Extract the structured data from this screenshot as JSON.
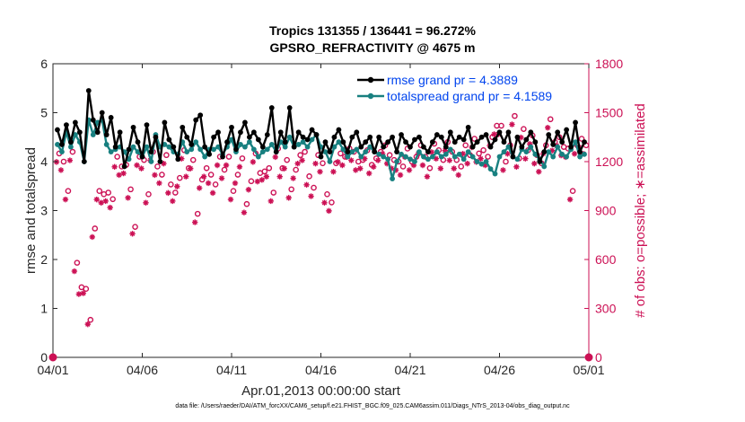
{
  "chart_data": {
    "type": "line",
    "title_line1": "Tropics 131355 / 136441 = 96.272%",
    "title_line2": "GPSRO_REFRACTIVITY @ 4675 m",
    "xlabel": "Apr.01,2013 00:00:00 start",
    "ylabel_left": "rmse and totalspread",
    "ylabel_right": "# of obs: o=possible; ∗=assimilated",
    "footer": "data file: /Users/raeder/DAI/ATM_forcXX/CAM6_setup/f.e21.FHIST_BGC.f09_025.CAM6assim.011/Diags_NTrS_2013-04/obs_diag_output.nc",
    "xlim": [
      0,
      30
    ],
    "ylim_left": [
      0,
      6
    ],
    "ylim_right": [
      0,
      1800
    ],
    "x_ticks": [
      0,
      5,
      10,
      15,
      20,
      25,
      30
    ],
    "x_tick_labels": [
      "04/01",
      "04/06",
      "04/11",
      "04/16",
      "04/21",
      "04/26",
      "05/01"
    ],
    "y_left_ticks": [
      "0",
      "1",
      "2",
      "3",
      "4",
      "5",
      "6"
    ],
    "y_right_ticks": [
      "0",
      "300",
      "600",
      "900",
      "1200",
      "1500",
      "1800"
    ],
    "legend_position": "top-right",
    "colors": {
      "rmse": "#000000",
      "spread": "#188080",
      "obs": "#cc1155",
      "legend_text": "#0044ee"
    },
    "series": [
      {
        "name": "rmse grand pr = 4.3889",
        "role": "rmse",
        "x": [
          0.25,
          0.5,
          0.75,
          1,
          1.25,
          1.5,
          1.75,
          2,
          2.25,
          2.5,
          2.75,
          3,
          3.25,
          3.5,
          3.75,
          4,
          4.25,
          4.5,
          4.75,
          5,
          5.25,
          5.5,
          5.75,
          6,
          6.25,
          6.5,
          6.75,
          7,
          7.25,
          7.5,
          7.75,
          8,
          8.25,
          8.5,
          8.75,
          9,
          9.25,
          9.5,
          9.75,
          10,
          10.25,
          10.5,
          10.75,
          11,
          11.25,
          11.5,
          11.75,
          12,
          12.25,
          12.5,
          12.75,
          13,
          13.25,
          13.5,
          13.75,
          14,
          14.25,
          14.5,
          14.75,
          15,
          15.25,
          15.5,
          15.75,
          16,
          16.25,
          16.5,
          16.75,
          17,
          17.25,
          17.5,
          17.75,
          18,
          18.25,
          18.5,
          18.75,
          19,
          19.25,
          19.5,
          19.75,
          20,
          20.25,
          20.5,
          20.75,
          21,
          21.25,
          21.5,
          21.75,
          22,
          22.25,
          22.5,
          22.75,
          23,
          23.25,
          23.5,
          23.75,
          24,
          24.25,
          24.5,
          24.75,
          25,
          25.25,
          25.5,
          25.75,
          26,
          26.25,
          26.5,
          26.75,
          27,
          27.25,
          27.5,
          27.75,
          28,
          28.25,
          28.5,
          28.75,
          29,
          29.25,
          29.5,
          29.75
        ],
        "values": [
          4.65,
          4.35,
          4.75,
          4.4,
          4.8,
          4.6,
          4.0,
          5.45,
          4.85,
          4.6,
          5.0,
          4.55,
          4.9,
          4.3,
          4.6,
          3.9,
          4.25,
          4.7,
          4.4,
          4.1,
          4.75,
          4.2,
          4.5,
          4.0,
          4.8,
          4.45,
          4.3,
          4.05,
          4.7,
          4.5,
          4.35,
          4.85,
          4.95,
          4.3,
          4.15,
          4.5,
          4.6,
          4.1,
          4.4,
          4.7,
          4.25,
          4.6,
          4.8,
          4.5,
          4.6,
          4.45,
          4.3,
          4.55,
          5.1,
          4.2,
          4.6,
          4.4,
          5.1,
          4.3,
          4.6,
          4.5,
          4.45,
          4.65,
          4.55,
          4.1,
          4.4,
          4.2,
          4.5,
          4.65,
          4.4,
          4.2,
          4.5,
          4.6,
          4.3,
          4.4,
          4.5,
          4.2,
          4.5,
          4.3,
          4.4,
          4.5,
          4.2,
          4.55,
          4.4,
          4.3,
          4.45,
          4.5,
          4.3,
          4.2,
          4.4,
          4.55,
          4.5,
          4.3,
          4.6,
          4.4,
          4.5,
          4.45,
          4.7,
          4.3,
          4.4,
          4.5,
          4.55,
          4.3,
          4.45,
          4.6,
          4.4,
          4.6,
          4.1,
          4.5,
          4.3,
          4.45,
          4.6,
          4.4,
          4.0,
          4.2,
          4.55,
          4.35,
          4.6,
          4.4,
          4.65,
          4.3,
          4.8,
          4.2,
          4.4
        ]
      },
      {
        "name": "totalspread grand pr = 4.1589",
        "role": "spread",
        "x": [
          0.25,
          0.5,
          0.75,
          1,
          1.25,
          1.5,
          1.75,
          2,
          2.25,
          2.5,
          2.75,
          3,
          3.25,
          3.5,
          3.75,
          4,
          4.25,
          4.5,
          4.75,
          5,
          5.25,
          5.5,
          5.75,
          6,
          6.25,
          6.5,
          6.75,
          7,
          7.25,
          7.5,
          7.75,
          8,
          8.25,
          8.5,
          8.75,
          9,
          9.25,
          9.5,
          9.75,
          10,
          10.25,
          10.5,
          10.75,
          11,
          11.25,
          11.5,
          11.75,
          12,
          12.25,
          12.5,
          12.75,
          13,
          13.25,
          13.5,
          13.75,
          14,
          14.25,
          14.5,
          14.75,
          15,
          15.25,
          15.5,
          15.75,
          16,
          16.25,
          16.5,
          16.75,
          17,
          17.25,
          17.5,
          17.75,
          18,
          18.25,
          18.5,
          18.75,
          19,
          19.25,
          19.5,
          19.75,
          20,
          20.25,
          20.5,
          20.75,
          21,
          21.25,
          21.5,
          21.75,
          22,
          22.25,
          22.5,
          22.75,
          23,
          23.25,
          23.5,
          23.75,
          24,
          24.25,
          24.5,
          24.75,
          25,
          25.25,
          25.5,
          25.75,
          26,
          26.25,
          26.5,
          26.75,
          27,
          27.25,
          27.5,
          27.75,
          28,
          28.25,
          28.5,
          28.75,
          29,
          29.25,
          29.5,
          29.75
        ],
        "values": [
          4.35,
          4.2,
          4.6,
          4.3,
          4.55,
          4.4,
          4.0,
          4.85,
          4.55,
          4.8,
          4.85,
          4.35,
          4.2,
          4.25,
          4.3,
          4.2,
          4.05,
          4.3,
          4.2,
          4.1,
          4.3,
          4.0,
          4.55,
          4.3,
          4.35,
          4.3,
          4.2,
          4.15,
          4.4,
          4.2,
          4.25,
          4.4,
          4.25,
          4.1,
          4.25,
          4.25,
          4.3,
          4.15,
          4.3,
          4.45,
          4.2,
          4.35,
          4.3,
          4.4,
          4.25,
          4.1,
          4.2,
          4.25,
          4.35,
          4.2,
          4.4,
          4.3,
          4.5,
          4.3,
          4.35,
          4.4,
          4.3,
          4.45,
          4.55,
          4.3,
          4.2,
          4.0,
          4.3,
          4.4,
          4.25,
          4.1,
          4.2,
          4.25,
          4.1,
          4.2,
          4.3,
          4.2,
          4.15,
          4.1,
          4.05,
          3.65,
          4.0,
          4.15,
          4.1,
          4.05,
          4.0,
          4.2,
          4.1,
          4.05,
          4.1,
          4.2,
          4.1,
          4.15,
          4.25,
          4.1,
          4.15,
          4.05,
          4.2,
          4.1,
          4.0,
          3.95,
          4.0,
          3.85,
          3.75,
          4.1,
          4.2,
          4.3,
          4.1,
          4.05,
          4.25,
          4.2,
          4.3,
          4.15,
          4.05,
          3.9,
          4.2,
          4.1,
          4.3,
          4.15,
          4.1,
          4.25,
          4.4,
          4.1,
          4.15
        ]
      },
      {
        "name": "observations possible",
        "role": "obs_possible",
        "marker": "o",
        "x": [
          0.25,
          0.5,
          0.75,
          1,
          1.25,
          1.5,
          1.75,
          2,
          2.25,
          2.5,
          2.75,
          3,
          3.25,
          3.5,
          3.75,
          4,
          4.25,
          4.5,
          4.75,
          5,
          5.25,
          5.5,
          5.75,
          6,
          6.25,
          6.5,
          6.75,
          7,
          7.25,
          7.5,
          7.75,
          8,
          8.25,
          8.5,
          8.75,
          9,
          9.25,
          9.5,
          9.75,
          10,
          10.25,
          10.5,
          10.75,
          11,
          11.25,
          11.5,
          11.75,
          12,
          12.25,
          12.5,
          12.75,
          13,
          13.25,
          13.5,
          13.75,
          14,
          14.25,
          14.5,
          14.75,
          15,
          15.25,
          15.5,
          15.75,
          16,
          16.25,
          16.5,
          16.75,
          17,
          17.25,
          17.5,
          17.75,
          18,
          18.25,
          18.5,
          18.75,
          19,
          19.25,
          19.5,
          19.75,
          20,
          20.25,
          20.5,
          20.75,
          21,
          21.25,
          21.5,
          21.75,
          22,
          22.25,
          22.5,
          22.75,
          23,
          23.25,
          23.5,
          23.75,
          24,
          24.25,
          24.5,
          24.75,
          25,
          25.25,
          25.5,
          25.75,
          26,
          26.25,
          26.5,
          26.75,
          27,
          27.25,
          27.5,
          27.75,
          28,
          28.25,
          28.5,
          28.75,
          29,
          29.25,
          29.5,
          29.75
        ],
        "values": [
          1250,
          1200,
          1020,
          1260,
          580,
          430,
          420,
          230,
          790,
          1020,
          1000,
          1010,
          970,
          1230,
          1170,
          1180,
          1030,
          800,
          1230,
          1210,
          1000,
          1260,
          1170,
          1120,
          1240,
          1060,
          1010,
          1100,
          1270,
          1160,
          1210,
          880,
          1090,
          1160,
          1120,
          1060,
          1230,
          1150,
          1230,
          1020,
          1120,
          1220,
          940,
          1080,
          1250,
          1130,
          1140,
          1160,
          1010,
          1280,
          1160,
          1210,
          1030,
          1150,
          1240,
          1260,
          1110,
          1040,
          1240,
          1190,
          1000,
          950,
          1190,
          1250,
          1230,
          1280,
          1260,
          1200,
          1210,
          1270,
          1180,
          1220,
          1260,
          1300,
          1240,
          1210,
          1200,
          1170,
          1280,
          1200,
          1230,
          1300,
          1230,
          1160,
          1310,
          1270,
          1210,
          1320,
          1260,
          1210,
          1170,
          1300,
          1240,
          1340,
          1250,
          1270,
          1230,
          1350,
          1420,
          1420,
          1200,
          1300,
          1480,
          1220,
          1400,
          1270,
          1360,
          1240,
          1190,
          1300,
          1460,
          1320,
          1350,
          1290,
          1280,
          1020,
          1300,
          1340,
          1300
        ]
      },
      {
        "name": "observations assimilated",
        "role": "obs_assimilated",
        "marker": "*",
        "x": [
          0.25,
          0.5,
          0.75,
          1,
          1.25,
          1.5,
          1.75,
          2,
          2.25,
          2.5,
          2.75,
          3,
          3.25,
          3.5,
          3.75,
          4,
          4.25,
          4.5,
          4.75,
          5,
          5.25,
          5.5,
          5.75,
          6,
          6.25,
          6.5,
          6.75,
          7,
          7.25,
          7.5,
          7.75,
          8,
          8.25,
          8.5,
          8.75,
          9,
          9.25,
          9.5,
          9.75,
          10,
          10.25,
          10.5,
          10.75,
          11,
          11.25,
          11.5,
          11.75,
          12,
          12.25,
          12.5,
          12.75,
          13,
          13.25,
          13.5,
          13.75,
          14,
          14.25,
          14.5,
          14.75,
          15,
          15.25,
          15.5,
          15.75,
          16,
          16.25,
          16.5,
          16.75,
          17,
          17.25,
          17.5,
          17.75,
          18,
          18.25,
          18.5,
          18.75,
          19,
          19.25,
          19.5,
          19.75,
          20,
          20.25,
          20.5,
          20.75,
          21,
          21.25,
          21.5,
          21.75,
          22,
          22.25,
          22.5,
          22.75,
          23,
          23.25,
          23.5,
          23.75,
          24,
          24.25,
          24.5,
          24.75,
          25,
          25.25,
          25.5,
          25.75,
          26,
          26.25,
          26.5,
          26.75,
          27,
          27.25,
          27.5,
          27.75,
          28,
          28.25,
          28.5,
          28.75,
          29,
          29.25,
          29.5,
          29.75
        ],
        "values": [
          1220,
          1170,
          990,
          1230,
          550,
          410,
          415,
          225,
          760,
          990,
          970,
          980,
          940,
          1190,
          1140,
          1150,
          1000,
          780,
          1200,
          1180,
          970,
          1230,
          1140,
          1090,
          1210,
          1030,
          980,
          1070,
          1240,
          1130,
          1180,
          850,
          1060,
          1130,
          1090,
          1030,
          1200,
          1120,
          1200,
          990,
          1090,
          1190,
          910,
          1050,
          1220,
          1100,
          1110,
          1130,
          980,
          1250,
          1130,
          1180,
          1000,
          1120,
          1210,
          1230,
          1080,
          1010,
          1210,
          1160,
          970,
          920,
          1160,
          1220,
          1200,
          1250,
          1230,
          1170,
          1180,
          1240,
          1150,
          1190,
          1230,
          1270,
          1210,
          1180,
          1170,
          1140,
          1250,
          1170,
          1200,
          1270,
          1200,
          1130,
          1280,
          1240,
          1180,
          1290,
          1230,
          1180,
          1140,
          1270,
          1210,
          1310,
          1220,
          1240,
          1200,
          1320,
          1390,
          1390,
          1170,
          1270,
          1450,
          1190,
          1370,
          1240,
          1330,
          1210,
          1160,
          1270,
          1430,
          1290,
          1320,
          1260,
          1250,
          990,
          1270,
          1310,
          1270
        ]
      }
    ],
    "edge_markers": {
      "x": [
        0,
        30
      ],
      "values": [
        0,
        0
      ]
    }
  }
}
